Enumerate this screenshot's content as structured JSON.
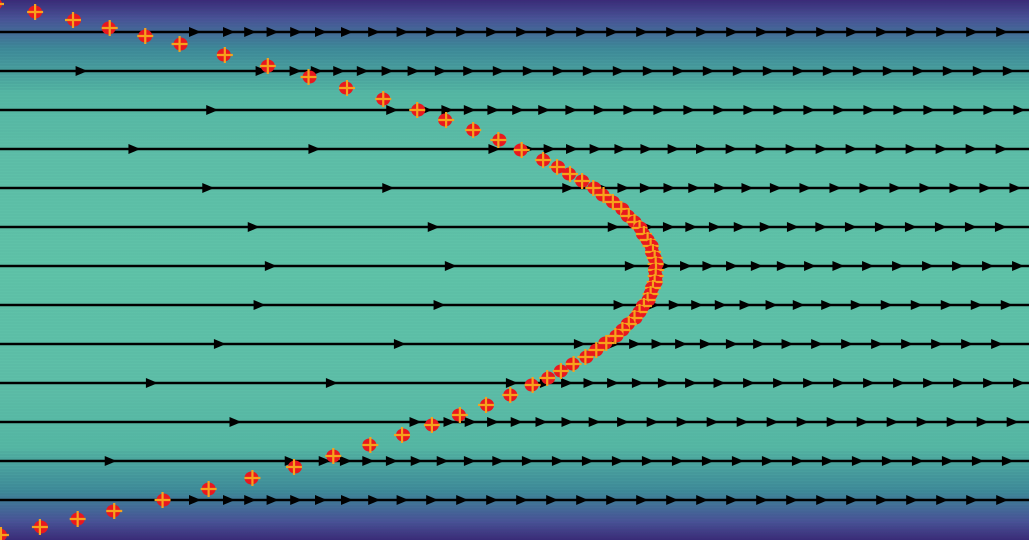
{
  "chart_data": {
    "type": "scatter",
    "title": "",
    "xlabel": "",
    "ylabel": "",
    "grid": false,
    "legend": "none",
    "background_colormap": [
      "#3b2a78",
      "#4a5398",
      "#3f8b9a",
      "#5cbfa6",
      "#5fc3a8"
    ],
    "streamlines": {
      "color": "#000000",
      "direction": "right",
      "count": 13
    },
    "interface_points": {
      "marker_fill": "#e8181f",
      "marker_cross": "#f7a21b",
      "shape": "parabolic front opening to the left"
    }
  }
}
